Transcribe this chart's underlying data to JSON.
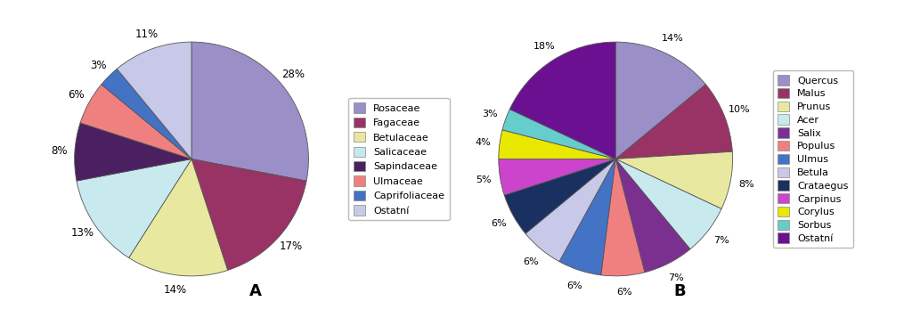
{
  "chart_A": {
    "labels": [
      "Rosaceae",
      "Fagaceae",
      "Betulaceae",
      "Salicaceae",
      "Sapindaceae",
      "Ulmaceae",
      "Caprifoliaceae",
      "Ostatní"
    ],
    "values": [
      28,
      17,
      14,
      13,
      8,
      6,
      3,
      11
    ],
    "colors": [
      "#9b8fc7",
      "#993366",
      "#e8e8a0",
      "#c8eaee",
      "#4a2060",
      "#f08080",
      "#4472c4",
      "#c8c8e8"
    ],
    "label_A": "A"
  },
  "chart_B": {
    "labels": [
      "Quercus",
      "Malus",
      "Prunus",
      "Acer",
      "Salix",
      "Populus",
      "Ulmus",
      "Betula",
      "Crataegus",
      "Carpinus",
      "Corylus",
      "Sorbus",
      "Ostatní"
    ],
    "values": [
      14,
      10,
      8,
      7,
      7,
      6,
      6,
      6,
      6,
      5,
      4,
      3,
      18
    ],
    "colors": [
      "#9b8fc7",
      "#993366",
      "#e8e8a0",
      "#c8eaee",
      "#7b3090",
      "#f08080",
      "#4472c4",
      "#c8c8e8",
      "#1a3060",
      "#cc44cc",
      "#e8e800",
      "#66cccc",
      "#6a1090"
    ],
    "label_B": "B"
  },
  "figsize": [
    10.24,
    3.57
  ],
  "dpi": 100,
  "background": "#ffffff"
}
